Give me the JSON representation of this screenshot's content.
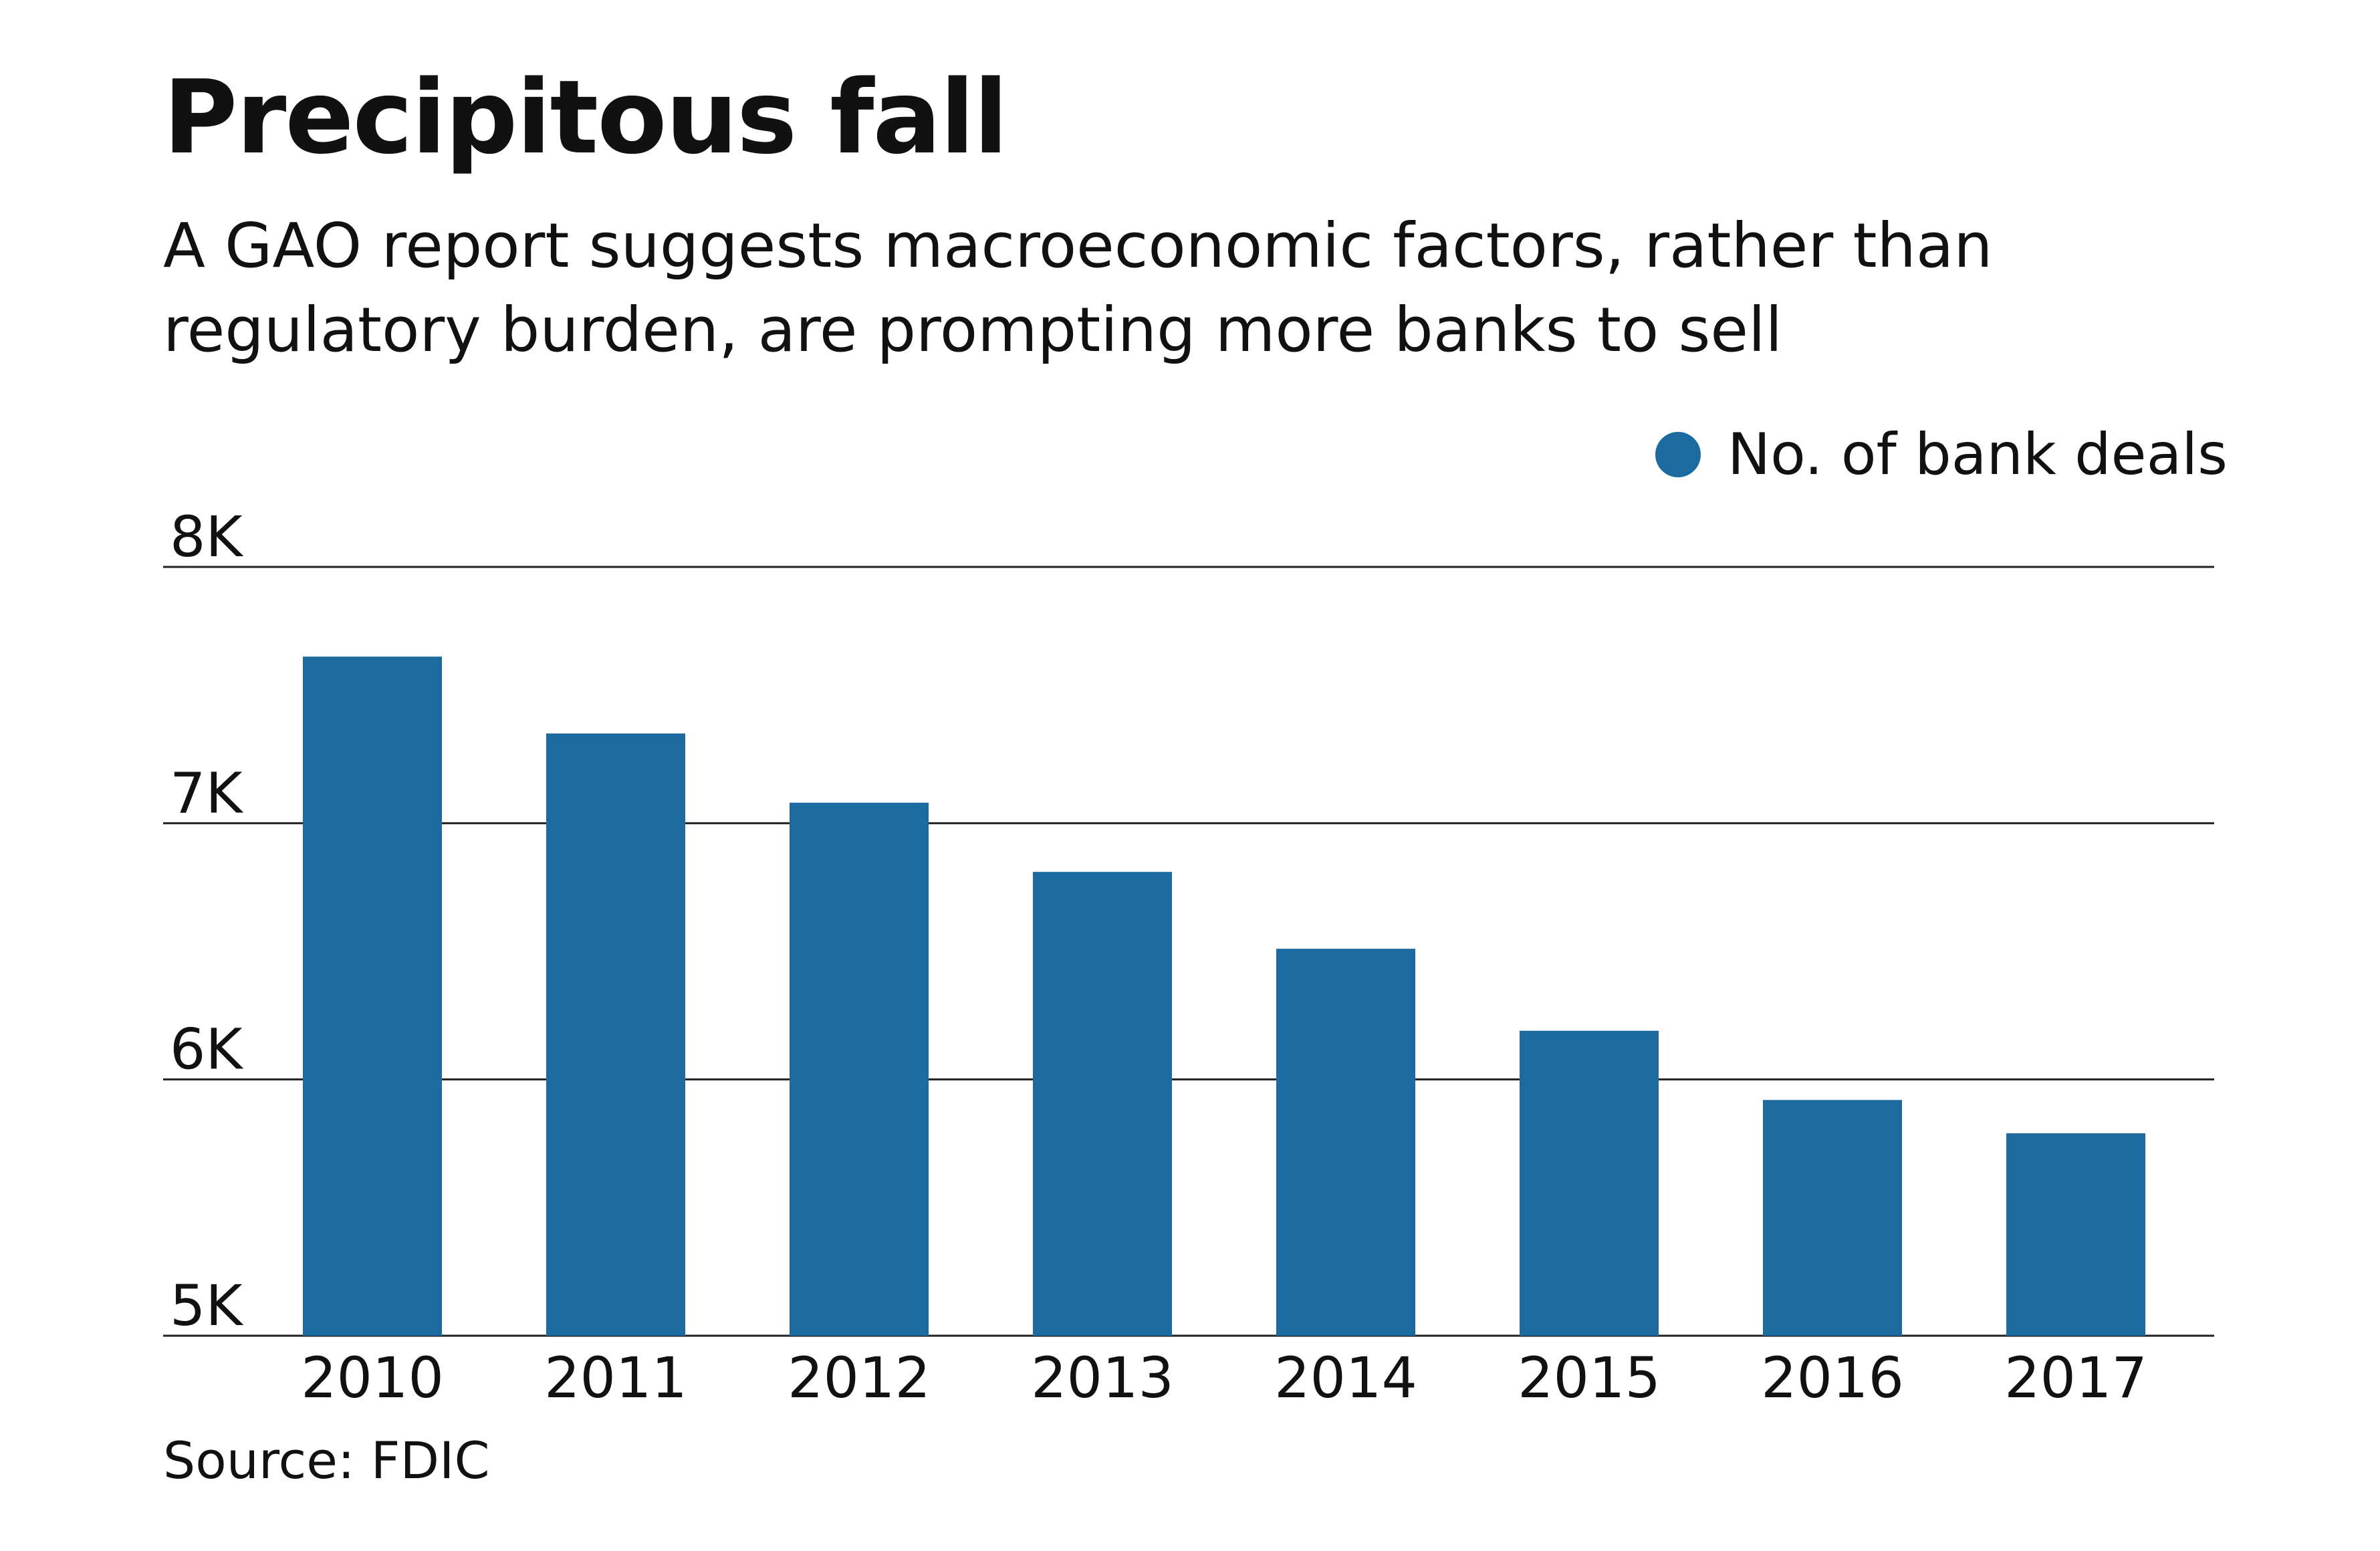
{
  "title": "Precipitous fall",
  "subtitle": "A GAO report suggests macroeconomic factors, rather than regulatory burden, are prompting more banks to sell",
  "source": "Source: FDIC",
  "colors": {
    "bar": "#1b6aa0",
    "grid": "#222222",
    "text": "#111111"
  },
  "chart_data": {
    "type": "bar",
    "categories": [
      "2010",
      "2011",
      "2012",
      "2013",
      "2014",
      "2015",
      "2016",
      "2017"
    ],
    "series": [
      {
        "name": "No. of bank deals",
        "values": [
          7650,
          7350,
          7080,
          6810,
          6510,
          6190,
          5920,
          5790
        ]
      }
    ],
    "ylim": [
      5000,
      8000
    ],
    "yticks": [
      5000,
      6000,
      7000,
      8000
    ],
    "ytick_labels": [
      "5K",
      "6K",
      "7K",
      "8K"
    ],
    "grid": true,
    "legend": "top-right"
  }
}
